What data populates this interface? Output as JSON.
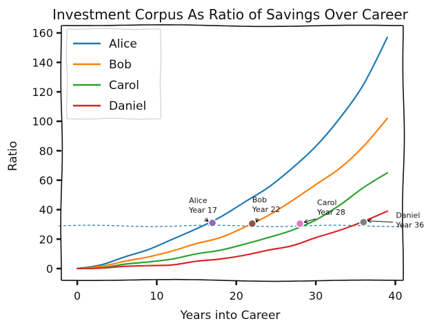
{
  "chart_data": {
    "type": "line",
    "title": "Investment Corpus As Ratio of Savings Over Career",
    "xlabel": "Years into Career",
    "ylabel": "Ratio",
    "xlim": [
      -2,
      41
    ],
    "ylim": [
      -8,
      165
    ],
    "xticks": [
      0,
      10,
      20,
      30,
      40
    ],
    "yticks": [
      0,
      20,
      40,
      60,
      80,
      100,
      120,
      140,
      160
    ],
    "legend_position": "top-left",
    "x": [
      0,
      3,
      6,
      9,
      12,
      15,
      18,
      21,
      24,
      27,
      30,
      33,
      36,
      39
    ],
    "series": [
      {
        "name": "Alice",
        "color": "#1f77b4",
        "values": [
          0,
          2.5,
          8,
          13,
          20,
          27,
          35,
          45,
          55,
          68,
          83,
          102,
          125,
          157
        ]
      },
      {
        "name": "Bob",
        "color": "#ff7f0e",
        "values": [
          0,
          1.5,
          5,
          8,
          12,
          17,
          21,
          28,
          36,
          46,
          57,
          68,
          83,
          102
        ]
      },
      {
        "name": "Carol",
        "color": "#2ca02c",
        "values": [
          0,
          0.5,
          3,
          4.5,
          6.5,
          10,
          12.5,
          16.5,
          21,
          26,
          33,
          43,
          55,
          65
        ]
      },
      {
        "name": "Daniel",
        "color": "#d62728",
        "values": [
          0,
          0.3,
          1.5,
          2,
          2.5,
          5,
          6.5,
          9,
          12.5,
          15.5,
          21,
          26,
          32,
          39
        ]
      }
    ],
    "reference_line": {
      "y": 29,
      "color": "#1f77b4",
      "style": "dashed"
    },
    "annotations": [
      {
        "series": "Alice",
        "x": 17,
        "y": 31,
        "marker_color": "#9467bd",
        "label": "Alice\nYear 17"
      },
      {
        "series": "Bob",
        "x": 22,
        "y": 30.5,
        "marker_color": "#8c564b",
        "label": "Bob\nYear 22"
      },
      {
        "series": "Carol",
        "x": 28,
        "y": 30.5,
        "marker_color": "#e377c2",
        "label": "Carol\nYear 28"
      },
      {
        "series": "Daniel",
        "x": 36,
        "y": 31.5,
        "marker_color": "#7f7f7f",
        "label": "Daniel\nYear 36"
      }
    ]
  }
}
